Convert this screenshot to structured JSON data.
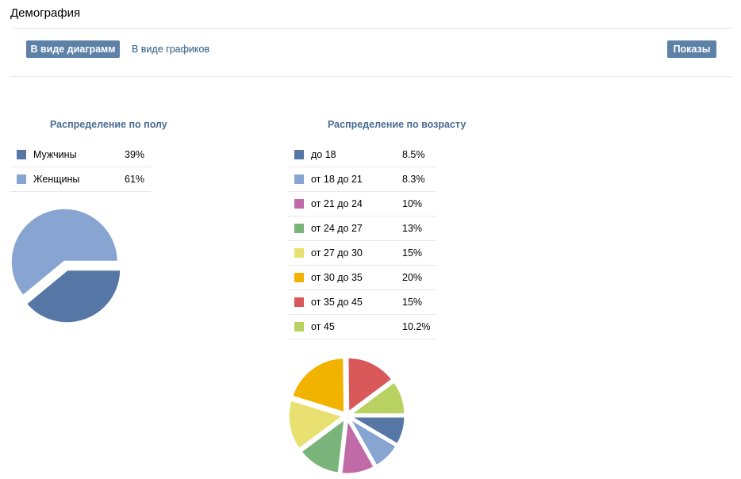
{
  "header": {
    "title": "Демография"
  },
  "toolbar": {
    "diagram_view_label": "В виде диаграмм",
    "graph_view_label": "В виде графиков",
    "shows_label": "Показы"
  },
  "colors": {
    "accent": "#5e81a8",
    "male": "#5677a6",
    "female": "#87a5d0"
  },
  "chart_data": [
    {
      "type": "pie",
      "title": "Распределение по полу",
      "series": [
        {
          "name": "Мужчины",
          "value": 39,
          "label": "39%",
          "color": "#5677a6"
        },
        {
          "name": "Женщины",
          "value": 61,
          "label": "61%",
          "color": "#87a5d0"
        }
      ]
    },
    {
      "type": "pie",
      "title": "Распределение по возрасту",
      "series": [
        {
          "name": "до 18",
          "value": 8.5,
          "label": "8.5%",
          "color": "#5677a6"
        },
        {
          "name": "от 18 до 21",
          "value": 8.3,
          "label": "8.3%",
          "color": "#87a5d0"
        },
        {
          "name": "от 21 до 24",
          "value": 10,
          "label": "10%",
          "color": "#c06aa8"
        },
        {
          "name": "от 24 до 27",
          "value": 13,
          "label": "13%",
          "color": "#7bb47a"
        },
        {
          "name": "от 27 до 30",
          "value": 15,
          "label": "15%",
          "color": "#e8e172"
        },
        {
          "name": "от 30 до 35",
          "value": 20,
          "label": "20%",
          "color": "#f2b200"
        },
        {
          "name": "от 35 до 45",
          "value": 15,
          "label": "15%",
          "color": "#d9585a"
        },
        {
          "name": "от 45",
          "value": 10.2,
          "label": "10.2%",
          "color": "#b8d160"
        }
      ]
    }
  ]
}
